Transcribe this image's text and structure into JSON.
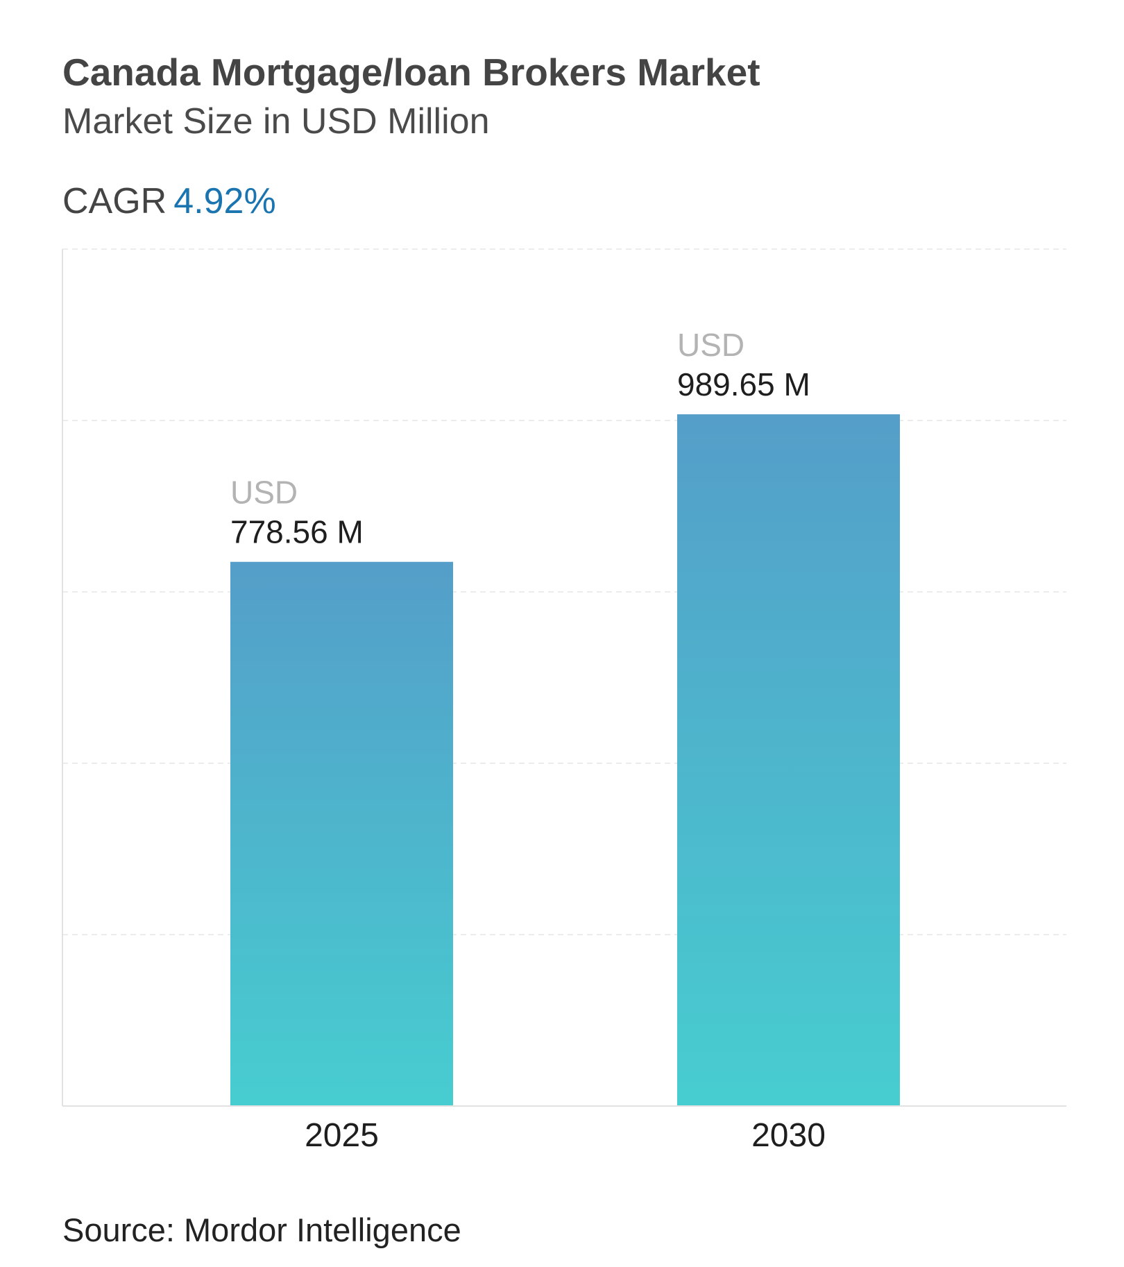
{
  "header": {
    "title": "Canada Mortgage/loan Brokers Market",
    "subtitle": "Market Size in USD Million",
    "cagr_label": "CAGR",
    "cagr_value": "4.92%"
  },
  "footer": {
    "source": "Source: Mordor Intelligence"
  },
  "colors": {
    "bar_top": "#549ec9",
    "bar_bottom": "#47cdd0",
    "cagr": "#1a74b0"
  },
  "chart_data": {
    "type": "bar",
    "categories": [
      "2025",
      "2030"
    ],
    "values": [
      778.56,
      989.65
    ],
    "value_labels": [
      {
        "unit": "USD",
        "text": "778.56 M"
      },
      {
        "unit": "USD",
        "text": "989.65 M"
      }
    ],
    "title": "Canada Mortgage/loan Brokers Market",
    "subtitle": "Market Size in USD Million",
    "xlabel": "",
    "ylabel": "",
    "ylim": [
      0,
      1226
    ],
    "grid": true,
    "gridline_count": 5,
    "y_tick_labels_shown": false,
    "legend": "none"
  }
}
